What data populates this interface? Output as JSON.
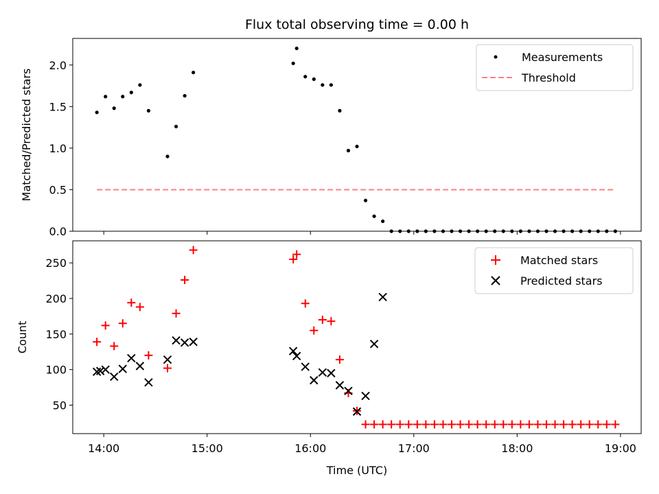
{
  "figure": {
    "title": "Flux total observing time = 0.00 h",
    "xlabel": "Time (UTC)"
  },
  "chart_data": [
    {
      "type": "scatter",
      "panel": "top",
      "ylabel": "Matched/Predicted stars",
      "xlim": [
        "13:42",
        "19:12"
      ],
      "ylim": [
        0,
        2.32
      ],
      "x_ticks": [
        "14:00",
        "15:00",
        "16:00",
        "17:00",
        "18:00",
        "19:00"
      ],
      "y_ticks": [
        "0.0",
        "0.5",
        "1.0",
        "1.5",
        "2.0"
      ],
      "legend_position": "top-right",
      "series": [
        {
          "name": "Measurements",
          "marker": "dot",
          "color": "#000000",
          "points": [
            [
              "13:56",
              1.43
            ],
            [
              "14:01",
              1.62
            ],
            [
              "14:06",
              1.48
            ],
            [
              "14:11",
              1.62
            ],
            [
              "14:16",
              1.67
            ],
            [
              "14:21",
              1.76
            ],
            [
              "14:26",
              1.45
            ],
            [
              "14:37",
              0.9
            ],
            [
              "14:42",
              1.26
            ],
            [
              "14:47",
              1.63
            ],
            [
              "14:52",
              1.91
            ],
            [
              "15:50",
              2.02
            ],
            [
              "15:52",
              2.2
            ],
            [
              "15:57",
              1.86
            ],
            [
              "16:02",
              1.83
            ],
            [
              "16:07",
              1.76
            ],
            [
              "16:12",
              1.76
            ],
            [
              "16:17",
              1.45
            ],
            [
              "16:22",
              0.97
            ],
            [
              "16:27",
              1.02
            ],
            [
              "16:32",
              0.37
            ],
            [
              "16:37",
              0.18
            ],
            [
              "16:42",
              0.12
            ],
            [
              "16:47",
              0.0
            ],
            [
              "16:52",
              0.0
            ],
            [
              "16:57",
              0.0
            ],
            [
              "17:02",
              0.0
            ],
            [
              "17:07",
              0.0
            ],
            [
              "17:12",
              0.0
            ],
            [
              "17:17",
              0.0
            ],
            [
              "17:22",
              0.0
            ],
            [
              "17:27",
              0.0
            ],
            [
              "17:32",
              0.0
            ],
            [
              "17:37",
              0.0
            ],
            [
              "17:42",
              0.0
            ],
            [
              "17:47",
              0.0
            ],
            [
              "17:52",
              0.0
            ],
            [
              "17:57",
              0.0
            ],
            [
              "18:02",
              0.0
            ],
            [
              "18:07",
              0.0
            ],
            [
              "18:12",
              0.0
            ],
            [
              "18:17",
              0.0
            ],
            [
              "18:22",
              0.0
            ],
            [
              "18:27",
              0.0
            ],
            [
              "18:32",
              0.0
            ],
            [
              "18:37",
              0.0
            ],
            [
              "18:42",
              0.0
            ],
            [
              "18:47",
              0.0
            ],
            [
              "18:52",
              0.0
            ],
            [
              "18:57",
              0.0
            ]
          ]
        },
        {
          "name": "Threshold",
          "type": "line",
          "style": "dashed",
          "color": "#ff7f7f",
          "points": [
            [
              "13:56",
              0.5
            ],
            [
              "18:57",
              0.5
            ]
          ]
        }
      ]
    },
    {
      "type": "scatter",
      "panel": "bottom",
      "ylabel": "Count",
      "xlabel": "Time (UTC)",
      "xlim": [
        "13:42",
        "19:12"
      ],
      "ylim": [
        10,
        281
      ],
      "x_ticks": [
        "14:00",
        "15:00",
        "16:00",
        "17:00",
        "18:00",
        "19:00"
      ],
      "y_ticks": [
        "50",
        "100",
        "150",
        "200",
        "250"
      ],
      "legend_position": "top-right",
      "series": [
        {
          "name": "Matched stars",
          "marker": "plus",
          "color": "#ff0000",
          "points": [
            [
              "13:56",
              139
            ],
            [
              "14:01",
              162
            ],
            [
              "14:06",
              133
            ],
            [
              "14:11",
              165
            ],
            [
              "14:16",
              194
            ],
            [
              "14:21",
              188
            ],
            [
              "14:26",
              120
            ],
            [
              "14:37",
              102
            ],
            [
              "14:42",
              179
            ],
            [
              "14:47",
              226
            ],
            [
              "14:52",
              268
            ],
            [
              "15:50",
              255
            ],
            [
              "15:52",
              262
            ],
            [
              "15:57",
              193
            ],
            [
              "16:02",
              155
            ],
            [
              "16:07",
              170
            ],
            [
              "16:12",
              168
            ],
            [
              "16:17",
              114
            ],
            [
              "16:22",
              67
            ],
            [
              "16:27",
              42
            ],
            [
              "16:32",
              23
            ],
            [
              "16:37",
              23
            ],
            [
              "16:42",
              23
            ],
            [
              "16:47",
              23
            ],
            [
              "16:52",
              23
            ],
            [
              "16:57",
              23
            ],
            [
              "17:02",
              23
            ],
            [
              "17:07",
              23
            ],
            [
              "17:12",
              23
            ],
            [
              "17:17",
              23
            ],
            [
              "17:22",
              23
            ],
            [
              "17:27",
              23
            ],
            [
              "17:32",
              23
            ],
            [
              "17:37",
              23
            ],
            [
              "17:42",
              23
            ],
            [
              "17:47",
              23
            ],
            [
              "17:52",
              23
            ],
            [
              "17:57",
              23
            ],
            [
              "18:02",
              23
            ],
            [
              "18:07",
              23
            ],
            [
              "18:12",
              23
            ],
            [
              "18:17",
              23
            ],
            [
              "18:22",
              23
            ],
            [
              "18:27",
              23
            ],
            [
              "18:32",
              23
            ],
            [
              "18:37",
              23
            ],
            [
              "18:42",
              23
            ],
            [
              "18:47",
              23
            ],
            [
              "18:52",
              23
            ],
            [
              "18:57",
              23
            ]
          ]
        },
        {
          "name": "Predicted stars",
          "marker": "x",
          "color": "#000000",
          "points": [
            [
              "13:56",
              97
            ],
            [
              "13:58",
              98
            ],
            [
              "14:01",
              100
            ],
            [
              "14:06",
              90
            ],
            [
              "14:11",
              101
            ],
            [
              "14:16",
              116
            ],
            [
              "14:21",
              105
            ],
            [
              "14:26",
              82
            ],
            [
              "14:37",
              114
            ],
            [
              "14:42",
              141
            ],
            [
              "14:47",
              138
            ],
            [
              "14:52",
              139
            ],
            [
              "15:50",
              126
            ],
            [
              "15:52",
              119
            ],
            [
              "15:57",
              104
            ],
            [
              "16:02",
              85
            ],
            [
              "16:07",
              96
            ],
            [
              "16:12",
              95
            ],
            [
              "16:17",
              78
            ],
            [
              "16:22",
              70
            ],
            [
              "16:27",
              41
            ],
            [
              "16:32",
              63
            ],
            [
              "16:37",
              136
            ],
            [
              "16:42",
              202
            ]
          ]
        }
      ]
    }
  ]
}
